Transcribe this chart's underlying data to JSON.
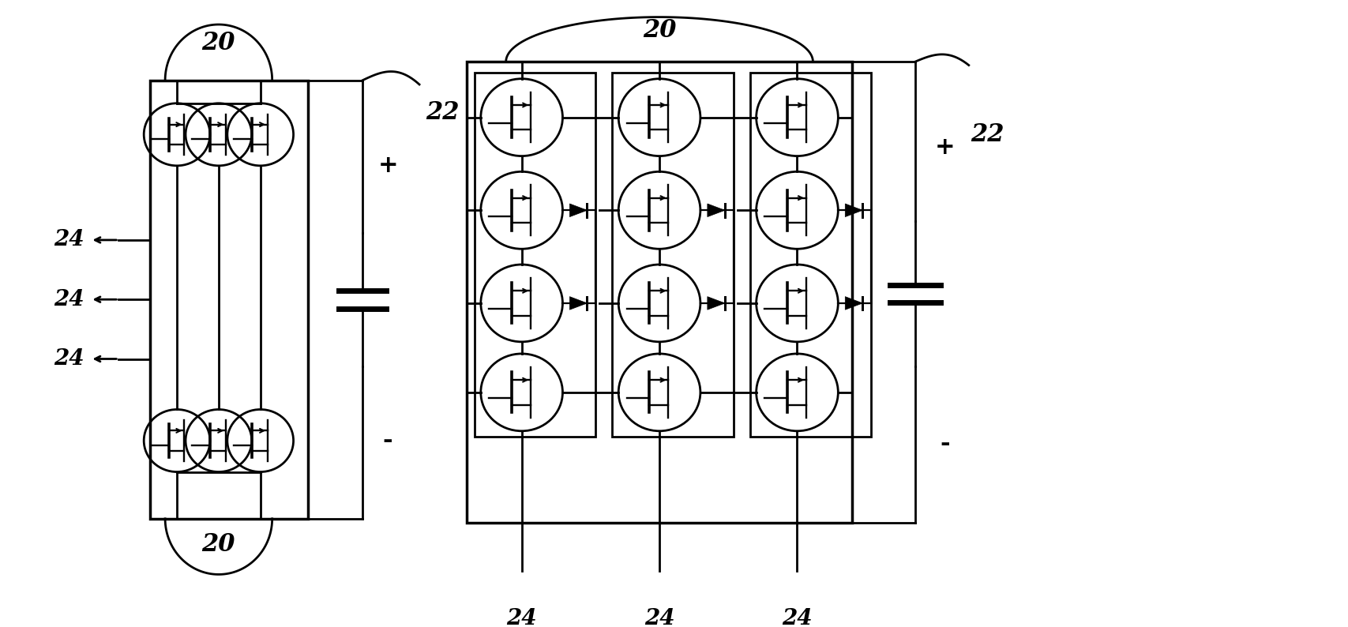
{
  "bg_color": "#ffffff",
  "line_color": "#000000",
  "fig_width": 17.08,
  "fig_height": 7.94,
  "dpi": 100
}
